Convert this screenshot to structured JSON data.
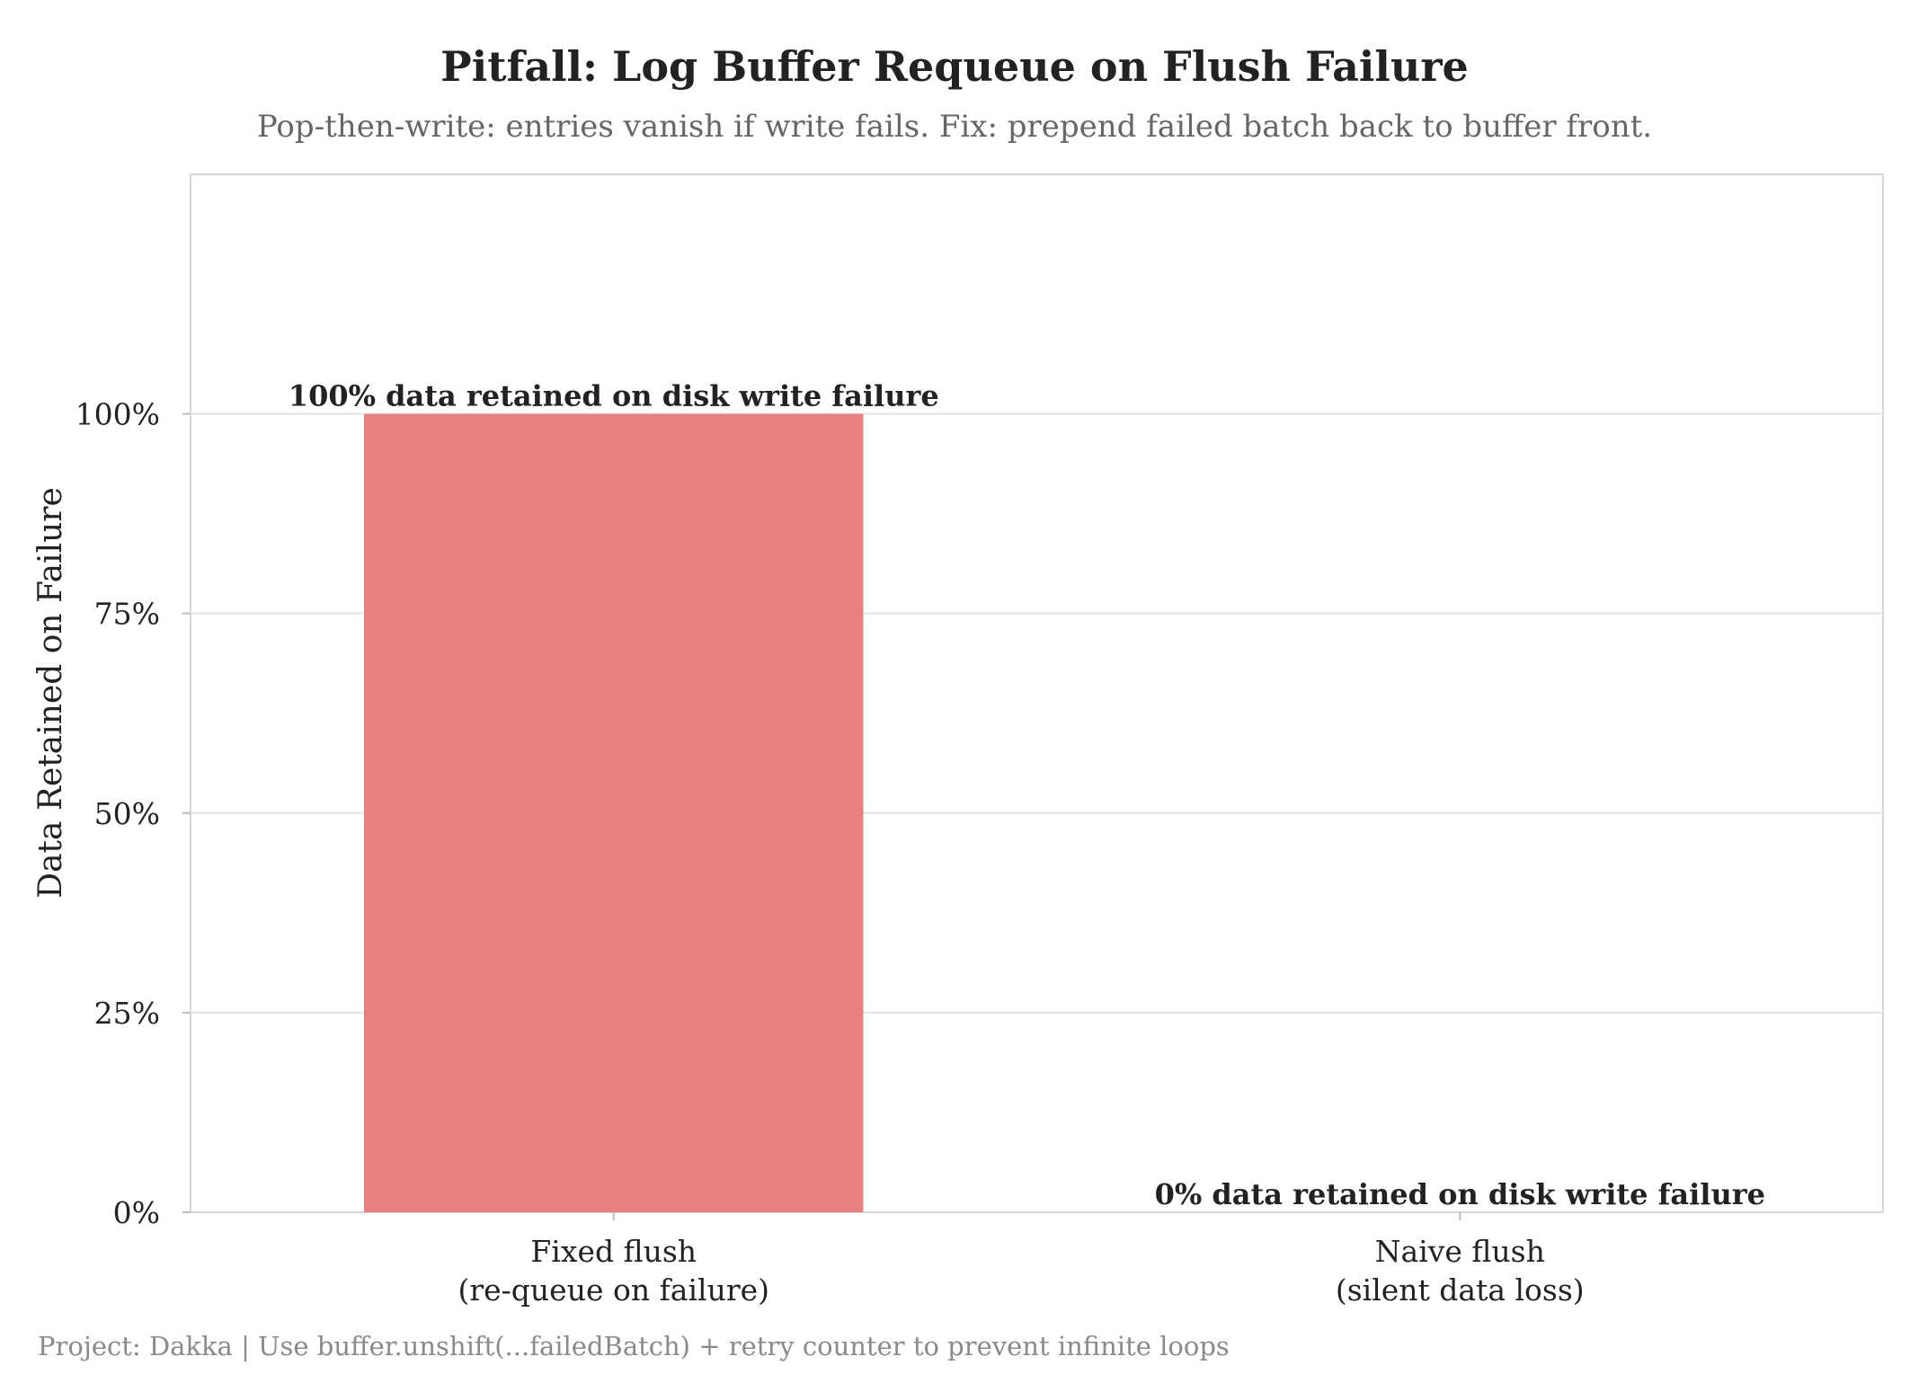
{
  "chart_data": {
    "type": "bar",
    "title": "Pitfall: Log Buffer Requeue on Flush Failure",
    "subtitle": "Pop-then-write: entries vanish if write fails. Fix: prepend failed batch back to buffer front.",
    "xlabel": "",
    "ylabel": "Data Retained on Failure",
    "categories": [
      [
        "Fixed flush",
        "(re-queue on failure)"
      ],
      [
        "Naive flush",
        "(silent data loss)"
      ]
    ],
    "values": [
      100,
      0
    ],
    "data_labels": [
      "100% data retained on disk write failure",
      "0% data retained on disk write failure"
    ],
    "ylim": [
      0,
      130
    ],
    "yticks": [
      0,
      25,
      50,
      75,
      100
    ],
    "ytick_labels": [
      "0%",
      "25%",
      "50%",
      "75%",
      "100%"
    ],
    "grid": true,
    "legend": "none",
    "bar_color": "#e57373",
    "caption": "Project: Dakka | Use buffer.unshift(...failedBatch) + retry counter to prevent infinite loops"
  }
}
